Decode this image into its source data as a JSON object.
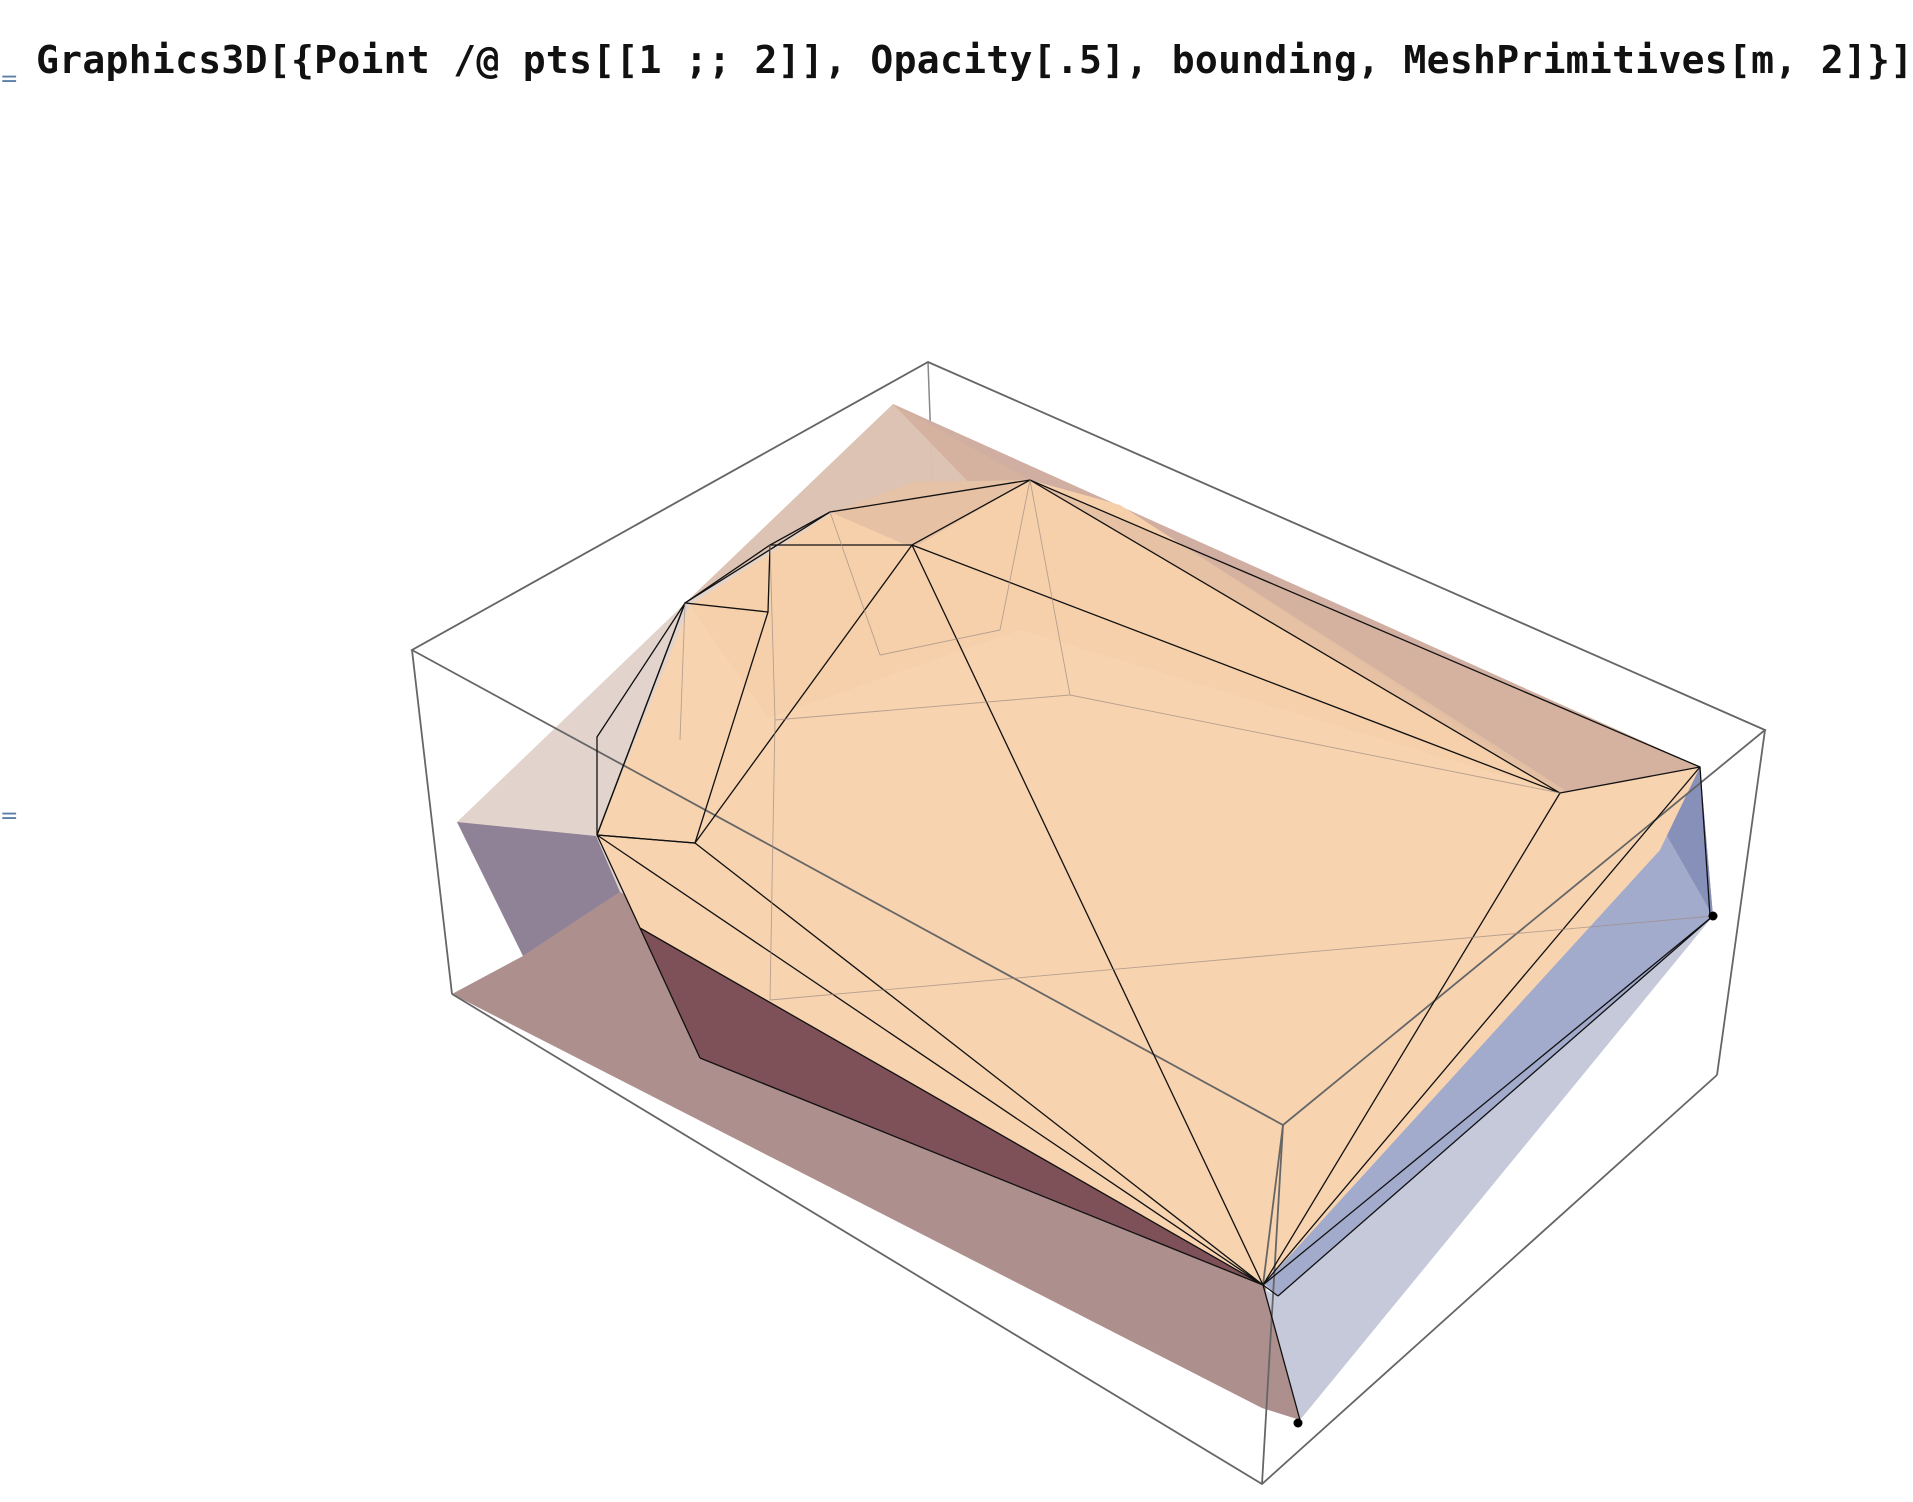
{
  "notebook": {
    "input_label": "=",
    "input_code": "Graphics3D[{Point /@ pts[[1 ;; 2]], Opacity[.5], bounding, MeshPrimitives[m, 2]}]",
    "output_label": "="
  },
  "graphics3d": {
    "description_colors": {
      "box_edge": "#666666",
      "face_light": "#f6d1ad",
      "face_side_dark": "#8a5e62",
      "face_side_rose": "#ab8b89",
      "face_blue": "#8d95bd",
      "face_blue_light": "#b7bdd6",
      "mesh_edge": "#111111",
      "point": "#000000"
    }
  }
}
